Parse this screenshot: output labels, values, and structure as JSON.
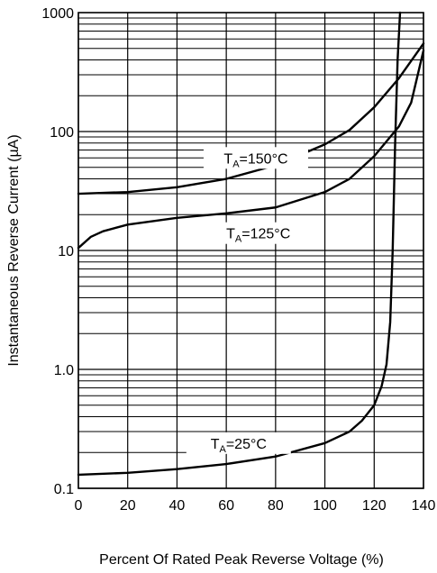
{
  "chart_data": {
    "type": "line",
    "title": "",
    "xlabel": "Percent Of Rated Peak Reverse Voltage (%)",
    "ylabel": "Instantaneous Reverse Current (µA)",
    "xlim": [
      0,
      140
    ],
    "ylim": [
      0.1,
      1000
    ],
    "yscale": "log",
    "grid": true,
    "x_ticks": [
      "0",
      "20",
      "40",
      "60",
      "80",
      "100",
      "120",
      "140"
    ],
    "y_ticks": [
      "0.1",
      "1.0",
      "10",
      "100",
      "1000"
    ],
    "series": [
      {
        "name": "TA=150°C",
        "label_main": "T",
        "label_sub": "A",
        "label_rest": "=150°C",
        "label_at": [
          72,
          60
        ],
        "points": [
          [
            0,
            30
          ],
          [
            20,
            31
          ],
          [
            40,
            34
          ],
          [
            60,
            40
          ],
          [
            80,
            52
          ],
          [
            100,
            78
          ],
          [
            110,
            103
          ],
          [
            120,
            160
          ],
          [
            130,
            280
          ],
          [
            140,
            550
          ]
        ]
      },
      {
        "name": "TA=125°C",
        "label_main": "T",
        "label_sub": "A",
        "label_rest": "=125°C",
        "label_at": [
          73,
          14
        ],
        "points": [
          [
            0,
            10.5
          ],
          [
            5,
            13
          ],
          [
            10,
            14.5
          ],
          [
            20,
            16.5
          ],
          [
            40,
            18.8
          ],
          [
            60,
            20.5
          ],
          [
            80,
            23
          ],
          [
            100,
            31
          ],
          [
            110,
            40
          ],
          [
            120,
            62
          ],
          [
            130,
            110
          ],
          [
            135,
            175
          ],
          [
            140,
            480
          ]
        ]
      },
      {
        "name": "TA=25°C",
        "label_main": "T",
        "label_sub": "A",
        "label_rest": "=25°C",
        "label_at": [
          65,
          0.24
        ],
        "points": [
          [
            0,
            0.13
          ],
          [
            20,
            0.135
          ],
          [
            40,
            0.145
          ],
          [
            60,
            0.16
          ],
          [
            80,
            0.185
          ],
          [
            100,
            0.24
          ],
          [
            110,
            0.3
          ],
          [
            115,
            0.37
          ],
          [
            120,
            0.5
          ],
          [
            123,
            0.72
          ],
          [
            125,
            1.1
          ],
          [
            126.5,
            2.5
          ],
          [
            127.5,
            10
          ],
          [
            128.5,
            80
          ],
          [
            129.5,
            400
          ],
          [
            130.5,
            1000
          ]
        ]
      }
    ]
  }
}
